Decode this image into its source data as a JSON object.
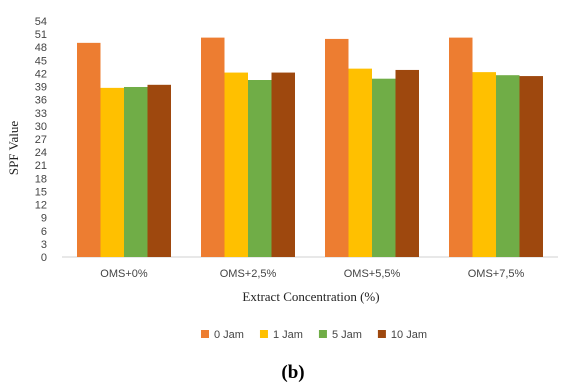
{
  "chart_data": {
    "type": "bar",
    "title": "",
    "xlabel": "Extract Concentration (%)",
    "ylabel": "SPF Value",
    "ylim": [
      0,
      54
    ],
    "yticks": [
      0,
      3,
      6,
      9,
      12,
      15,
      18,
      21,
      24,
      27,
      30,
      33,
      36,
      39,
      42,
      45,
      48,
      51,
      54
    ],
    "grid": false,
    "legend_position": "bottom",
    "categories": [
      "OMS+0%",
      "OMS+2,5%",
      "OMS+5,5%",
      "OMS+7,5%"
    ],
    "series": [
      {
        "name": "0 Jam",
        "color": "#ED7D31",
        "values": [
          49.0,
          50.2,
          49.9,
          50.2
        ]
      },
      {
        "name": "1 Jam",
        "color": "#FFC000",
        "values": [
          38.7,
          42.2,
          43.1,
          42.3
        ]
      },
      {
        "name": "5 Jam",
        "color": "#70AD47",
        "values": [
          38.9,
          40.5,
          40.8,
          41.6
        ]
      },
      {
        "name": "10 Jam",
        "color": "#9E480E",
        "values": [
          39.4,
          42.2,
          42.8,
          41.4
        ]
      }
    ]
  },
  "panel_label": "(b)"
}
